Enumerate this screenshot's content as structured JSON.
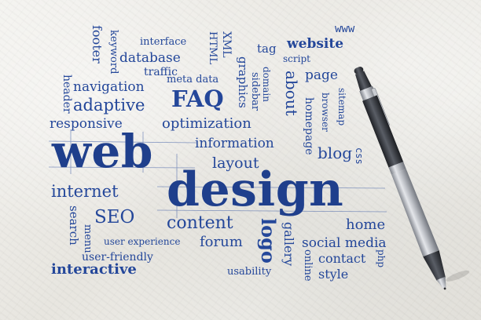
{
  "words": [
    "www",
    "footer",
    "keyword",
    "interface",
    "HTML",
    "XML",
    "tag",
    "website",
    "database",
    "script",
    "header",
    "traffic",
    "meta data",
    "domain",
    "page",
    "navigation",
    "graphics",
    "sidebar",
    "about",
    "adaptive",
    "FAQ",
    "sitemap",
    "responsive",
    "optimization",
    "browser",
    "homepage",
    "web",
    "information",
    "blog",
    "layout",
    "css",
    "internet",
    "design",
    "SEO",
    "content",
    "home",
    "search",
    "menu",
    "user experience",
    "forum",
    "logo",
    "gallery",
    "social media",
    "user-friendly",
    "contact",
    "online",
    "php",
    "interactive",
    "usability",
    "style"
  ],
  "colors": {
    "ink": "#24479a",
    "paper": "#ebe9e3",
    "pen_body": "#b9bcc2",
    "pen_grip": "#3a3d44"
  }
}
